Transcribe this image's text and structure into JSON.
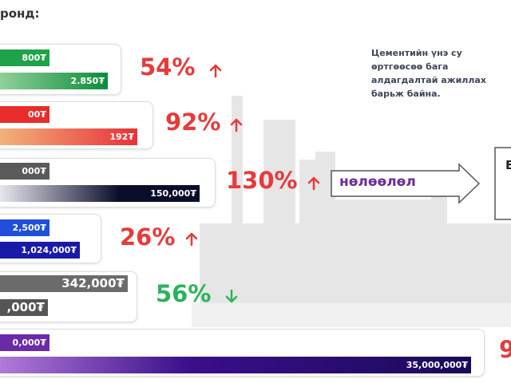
{
  "header": {
    "title": "ронд:"
  },
  "rows": [
    {
      "before": "800₮",
      "after": "2.850₮",
      "change": "54%"
    },
    {
      "before": "00₮",
      "after": "192₮",
      "change": "92%"
    },
    {
      "before": "000₮",
      "after": "150,000₮",
      "change": "130%"
    },
    {
      "before": "2,500₮",
      "after": "1,024,000₮",
      "change": "26%"
    },
    {
      "before": "342,000₮",
      "after": ",000₮",
      "change": "56%"
    },
    {
      "before": "0,000₮",
      "after": "35,000,000₮",
      "change": "9"
    }
  ],
  "impact_label": "нөлөөлөл",
  "side_box": "Б",
  "note": [
    "Цементийн   үнэ   су",
    "өртгөөсөө    бага",
    "алдагдалтай  ажиллах",
    "барьж байна."
  ]
}
